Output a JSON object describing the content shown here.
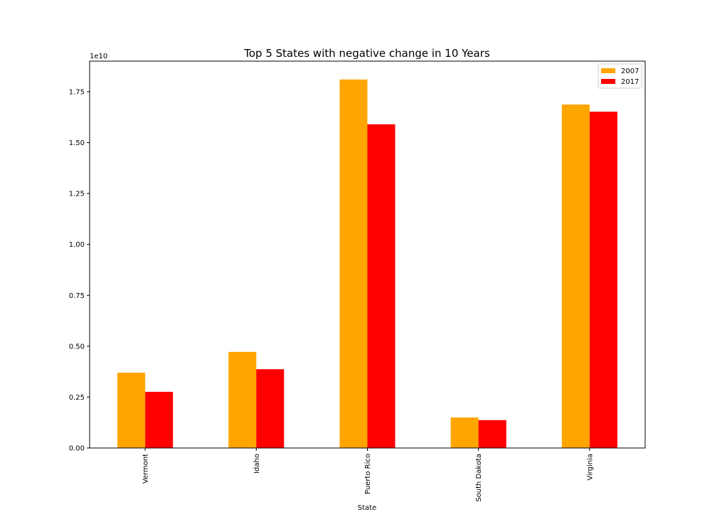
{
  "chart_data": {
    "type": "bar",
    "title": "Top 5 States with negative change in 10 Years",
    "xlabel": "State",
    "ylabel": "",
    "y_offset_label": "1e10",
    "y_scale": 10000000000,
    "categories": [
      "Vermont",
      "Idaho",
      "Puerto Rico",
      "South Dakota",
      "Virginia"
    ],
    "series": [
      {
        "name": "2007",
        "color": "#ffa500",
        "values": [
          3.7,
          4.72,
          18.1,
          1.5,
          16.87
        ]
      },
      {
        "name": "2017",
        "color": "#ff0000",
        "values": [
          2.76,
          3.87,
          15.9,
          1.37,
          16.52
        ]
      }
    ],
    "ylim": [
      0,
      19
    ],
    "yticks": [
      0,
      2.5,
      5,
      7.5,
      10,
      12.5,
      15,
      17.5
    ],
    "ytick_labels": [
      "0.00",
      "0.25",
      "0.50",
      "0.75",
      "1.00",
      "1.25",
      "1.50",
      "1.75"
    ],
    "legend_position": "top-right",
    "grid": false
  }
}
